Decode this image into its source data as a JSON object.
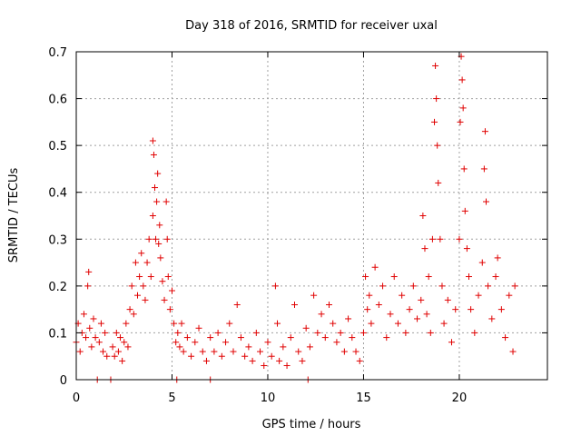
{
  "chart_data": {
    "type": "scatter",
    "title": "Day 318 of 2016, SRMTID for receiver uxal",
    "xlabel": "GPS time / hours",
    "ylabel": "SRMTID / TECUs",
    "xlim": [
      0,
      24.6
    ],
    "ylim": [
      0,
      0.7
    ],
    "xticks": [
      0,
      5,
      10,
      15,
      20
    ],
    "xtick_labels": [
      "0",
      "5",
      "10",
      "15",
      "20"
    ],
    "yticks": [
      0,
      0.1,
      0.2,
      0.3,
      0.4,
      0.5,
      0.6,
      0.7
    ],
    "ytick_labels": [
      "0",
      "0.1",
      "0.2",
      "0.3",
      "0.4",
      "0.5",
      "0.6",
      "0.7"
    ],
    "grid": true,
    "marker": "+",
    "color": "#e00000",
    "series": [
      {
        "name": "SRMTID",
        "points": [
          [
            0.0,
            0.08
          ],
          [
            0.1,
            0.12
          ],
          [
            0.2,
            0.06
          ],
          [
            0.3,
            0.1
          ],
          [
            0.4,
            0.14
          ],
          [
            0.5,
            0.09
          ],
          [
            0.6,
            0.2
          ],
          [
            0.65,
            0.23
          ],
          [
            0.7,
            0.11
          ],
          [
            0.8,
            0.07
          ],
          [
            0.9,
            0.13
          ],
          [
            1.0,
            0.09
          ],
          [
            1.1,
            0.0
          ],
          [
            1.2,
            0.08
          ],
          [
            1.3,
            0.12
          ],
          [
            1.4,
            0.06
          ],
          [
            1.5,
            0.1
          ],
          [
            1.6,
            0.05
          ],
          [
            1.8,
            0.0
          ],
          [
            1.9,
            0.07
          ],
          [
            2.0,
            0.05
          ],
          [
            2.1,
            0.1
          ],
          [
            2.2,
            0.06
          ],
          [
            2.3,
            0.09
          ],
          [
            2.4,
            0.04
          ],
          [
            2.5,
            0.08
          ],
          [
            2.6,
            0.12
          ],
          [
            2.7,
            0.07
          ],
          [
            2.8,
            0.15
          ],
          [
            2.9,
            0.2
          ],
          [
            3.0,
            0.14
          ],
          [
            3.1,
            0.25
          ],
          [
            3.2,
            0.18
          ],
          [
            3.3,
            0.22
          ],
          [
            3.4,
            0.27
          ],
          [
            3.5,
            0.2
          ],
          [
            3.6,
            0.17
          ],
          [
            3.7,
            0.25
          ],
          [
            3.8,
            0.3
          ],
          [
            3.9,
            0.22
          ],
          [
            4.0,
            0.35
          ],
          [
            4.0,
            0.51
          ],
          [
            4.05,
            0.48
          ],
          [
            4.1,
            0.41
          ],
          [
            4.15,
            0.3
          ],
          [
            4.2,
            0.38
          ],
          [
            4.25,
            0.44
          ],
          [
            4.3,
            0.29
          ],
          [
            4.35,
            0.33
          ],
          [
            4.4,
            0.26
          ],
          [
            4.5,
            0.21
          ],
          [
            4.6,
            0.17
          ],
          [
            4.7,
            0.38
          ],
          [
            4.75,
            0.3
          ],
          [
            4.8,
            0.22
          ],
          [
            4.9,
            0.15
          ],
          [
            5.0,
            0.19
          ],
          [
            5.1,
            0.12
          ],
          [
            5.2,
            0.08
          ],
          [
            5.25,
            0.0
          ],
          [
            5.3,
            0.1
          ],
          [
            5.4,
            0.07
          ],
          [
            5.5,
            0.12
          ],
          [
            5.6,
            0.06
          ],
          [
            5.8,
            0.09
          ],
          [
            6.0,
            0.05
          ],
          [
            6.2,
            0.08
          ],
          [
            6.4,
            0.11
          ],
          [
            6.6,
            0.06
          ],
          [
            6.8,
            0.04
          ],
          [
            7.0,
            0.09
          ],
          [
            7.0,
            0.0
          ],
          [
            7.2,
            0.06
          ],
          [
            7.4,
            0.1
          ],
          [
            7.6,
            0.05
          ],
          [
            7.8,
            0.08
          ],
          [
            8.0,
            0.12
          ],
          [
            8.2,
            0.06
          ],
          [
            8.4,
            0.16
          ],
          [
            8.6,
            0.09
          ],
          [
            8.8,
            0.05
          ],
          [
            9.0,
            0.07
          ],
          [
            9.2,
            0.04
          ],
          [
            9.4,
            0.1
          ],
          [
            9.6,
            0.06
          ],
          [
            9.8,
            0.03
          ],
          [
            10.0,
            0.08
          ],
          [
            10.2,
            0.05
          ],
          [
            10.4,
            0.2
          ],
          [
            10.5,
            0.12
          ],
          [
            10.6,
            0.04
          ],
          [
            10.8,
            0.07
          ],
          [
            11.0,
            0.03
          ],
          [
            11.2,
            0.09
          ],
          [
            11.4,
            0.16
          ],
          [
            11.6,
            0.06
          ],
          [
            11.8,
            0.04
          ],
          [
            12.0,
            0.11
          ],
          [
            12.1,
            0.0
          ],
          [
            12.2,
            0.07
          ],
          [
            12.4,
            0.18
          ],
          [
            12.6,
            0.1
          ],
          [
            12.8,
            0.14
          ],
          [
            13.0,
            0.09
          ],
          [
            13.2,
            0.16
          ],
          [
            13.4,
            0.12
          ],
          [
            13.6,
            0.08
          ],
          [
            13.8,
            0.1
          ],
          [
            14.0,
            0.06
          ],
          [
            14.2,
            0.13
          ],
          [
            14.4,
            0.09
          ],
          [
            14.6,
            0.06
          ],
          [
            14.8,
            0.04
          ],
          [
            15.0,
            0.1
          ],
          [
            15.1,
            0.22
          ],
          [
            15.2,
            0.15
          ],
          [
            15.3,
            0.18
          ],
          [
            15.4,
            0.12
          ],
          [
            15.6,
            0.24
          ],
          [
            15.8,
            0.16
          ],
          [
            16.0,
            0.2
          ],
          [
            16.2,
            0.09
          ],
          [
            16.4,
            0.14
          ],
          [
            16.6,
            0.22
          ],
          [
            16.8,
            0.12
          ],
          [
            17.0,
            0.18
          ],
          [
            17.2,
            0.1
          ],
          [
            17.4,
            0.15
          ],
          [
            17.6,
            0.2
          ],
          [
            17.8,
            0.13
          ],
          [
            18.0,
            0.17
          ],
          [
            18.1,
            0.35
          ],
          [
            18.2,
            0.28
          ],
          [
            18.3,
            0.14
          ],
          [
            18.4,
            0.22
          ],
          [
            18.5,
            0.1
          ],
          [
            18.6,
            0.3
          ],
          [
            18.7,
            0.55
          ],
          [
            18.75,
            0.67
          ],
          [
            18.8,
            0.6
          ],
          [
            18.85,
            0.5
          ],
          [
            18.9,
            0.42
          ],
          [
            19.0,
            0.3
          ],
          [
            19.1,
            0.2
          ],
          [
            19.2,
            0.12
          ],
          [
            19.4,
            0.17
          ],
          [
            19.6,
            0.08
          ],
          [
            19.8,
            0.15
          ],
          [
            20.0,
            0.3
          ],
          [
            20.05,
            0.55
          ],
          [
            20.1,
            0.69
          ],
          [
            20.15,
            0.64
          ],
          [
            20.2,
            0.58
          ],
          [
            20.25,
            0.45
          ],
          [
            20.3,
            0.36
          ],
          [
            20.4,
            0.28
          ],
          [
            20.5,
            0.22
          ],
          [
            20.6,
            0.15
          ],
          [
            20.8,
            0.1
          ],
          [
            21.0,
            0.18
          ],
          [
            21.2,
            0.25
          ],
          [
            21.3,
            0.45
          ],
          [
            21.35,
            0.53
          ],
          [
            21.4,
            0.38
          ],
          [
            21.5,
            0.2
          ],
          [
            21.7,
            0.13
          ],
          [
            21.9,
            0.22
          ],
          [
            22.0,
            0.26
          ],
          [
            22.2,
            0.15
          ],
          [
            22.4,
            0.09
          ],
          [
            22.6,
            0.18
          ],
          [
            22.8,
            0.06
          ],
          [
            22.9,
            0.2
          ]
        ]
      }
    ]
  }
}
